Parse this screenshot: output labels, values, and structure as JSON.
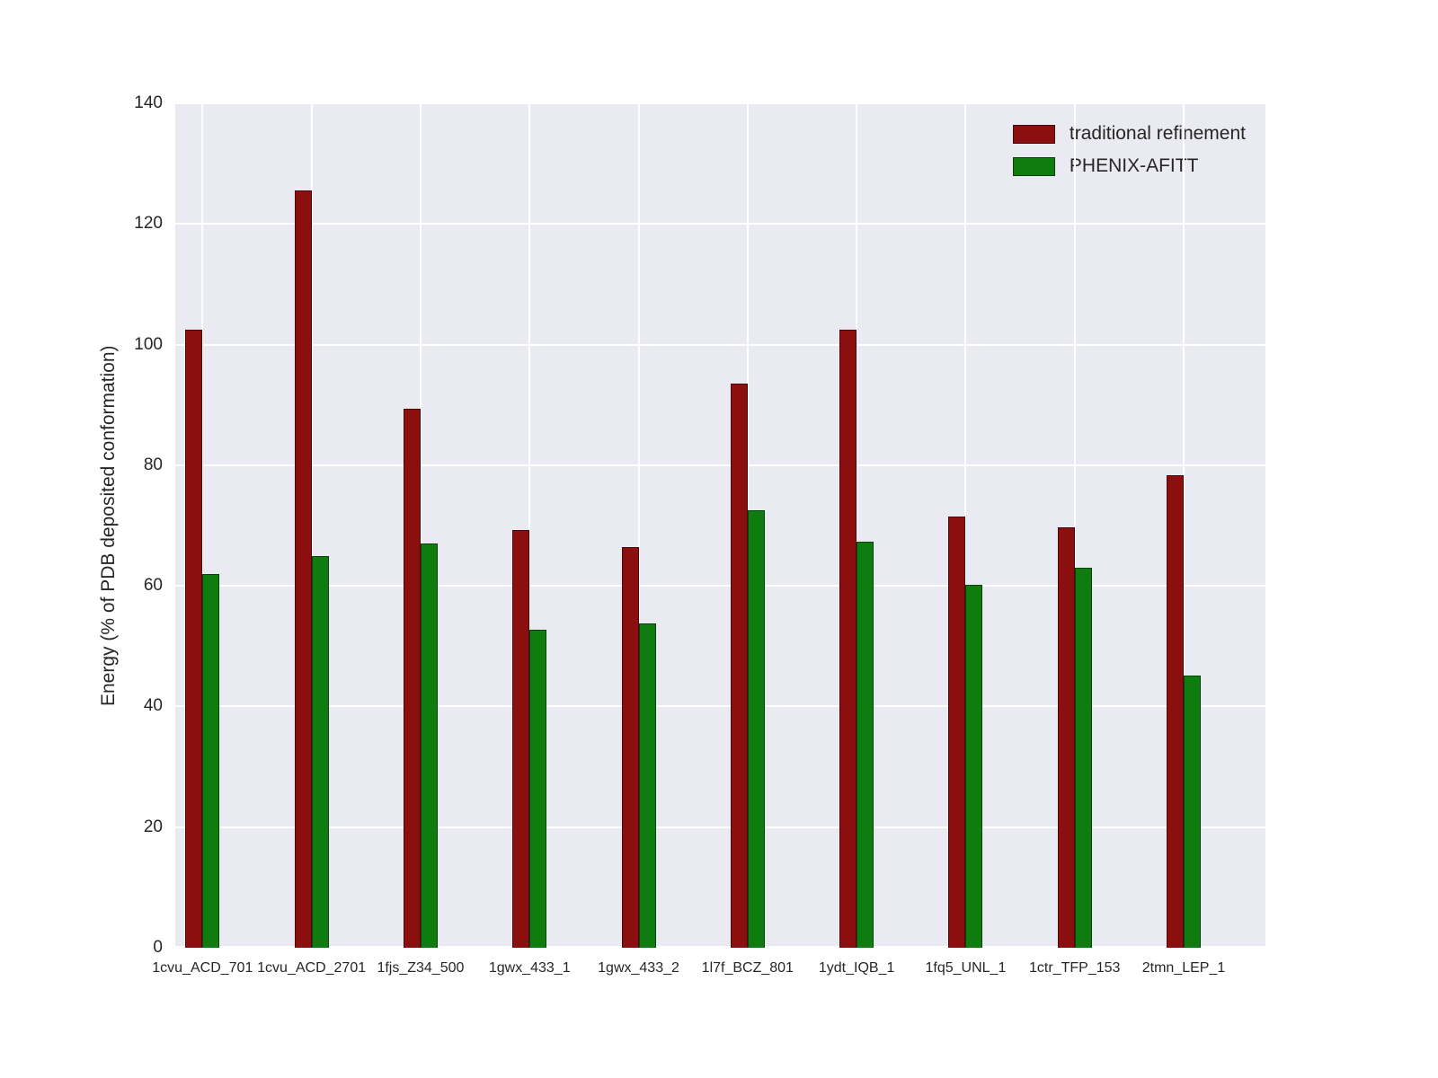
{
  "figure": {
    "background_color": "#ffffff",
    "plot_background_color": "#eaeaf2",
    "grid_color": "#ffffff",
    "tick_label_color": "#262626"
  },
  "legend": {
    "position": "upper right",
    "items": [
      {
        "label": "traditional refinement",
        "color": "#8b0f0f",
        "swatch": "red-rect-swatch"
      },
      {
        "label": "PHENIX-AFITT",
        "color": "#0f7c10",
        "swatch": "green-rect-swatch"
      }
    ]
  },
  "chart_data": {
    "type": "bar",
    "title": "",
    "xlabel": "",
    "ylabel": "Energy (% of PDB deposited conformation)",
    "ylim": [
      0,
      140
    ],
    "yticks": [
      0,
      20,
      40,
      60,
      80,
      100,
      120,
      140
    ],
    "grid": true,
    "legend_position": "upper right",
    "categories": [
      "1cvu_ACD_701",
      "1cvu_ACD_2701",
      "1fjs_Z34_500",
      "1gwx_433_1",
      "1gwx_433_2",
      "1l7f_BCZ_801",
      "1ydt_IQB_1",
      "1fq5_UNL_1",
      "1ctr_TFP_153",
      "2tmn_LEP_1"
    ],
    "series": [
      {
        "name": "traditional refinement",
        "color": "#8b0f0f",
        "values": [
          102.5,
          125.5,
          89.3,
          69.3,
          66.5,
          93.5,
          102.5,
          71.5,
          69.7,
          78.3
        ]
      },
      {
        "name": "PHENIX-AFITT",
        "color": "#0f7c10",
        "values": [
          62.0,
          65.0,
          67.0,
          52.8,
          53.7,
          72.5,
          67.3,
          60.2,
          63.0,
          45.2
        ]
      }
    ]
  }
}
